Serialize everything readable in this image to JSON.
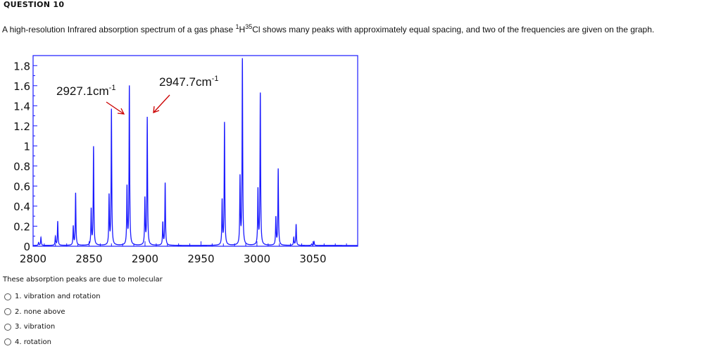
{
  "question": {
    "title": "QUESTION 10",
    "text_before": "A high-resolution Infrared absorption spectrum of a gas phase ",
    "iso_h": "1",
    "elem_h": "H",
    "iso_cl": "35",
    "text_after": "Cl shows many peaks with approximately equal spacing, and two of the frequencies are given on the graph.",
    "prompt": "These absorption peaks are due to molecular",
    "options": [
      {
        "label": "1. vibration and rotation"
      },
      {
        "label": "2. none above"
      },
      {
        "label": "3. vibration"
      },
      {
        "label": "4. rotation"
      }
    ]
  },
  "chart_data": {
    "type": "line",
    "line_color": "#1a1aff",
    "arrow_color": "#cc0000",
    "xlim": [
      2800,
      3090
    ],
    "ylim": [
      0,
      1.9
    ],
    "x_ticks": [
      "2800",
      "2850",
      "2900",
      "2950",
      "3000",
      "3050"
    ],
    "y_ticks": [
      "0",
      "0.2",
      "0.4",
      "0.6",
      "0.8",
      "1",
      "1.2",
      "1.4",
      "1.6",
      "1.8"
    ],
    "peaks": [
      {
        "x": 2807,
        "y": 0.08
      },
      {
        "x": 2822,
        "y": 0.24
      },
      {
        "x": 2838,
        "y": 0.52
      },
      {
        "x": 2854,
        "y": 0.98
      },
      {
        "x": 2870,
        "y": 1.35
      },
      {
        "x": 2886,
        "y": 1.58
      },
      {
        "x": 2902,
        "y": 1.27
      },
      {
        "x": 2918,
        "y": 0.62
      },
      {
        "x": 2971,
        "y": 1.22
      },
      {
        "x": 2987,
        "y": 1.85
      },
      {
        "x": 3003,
        "y": 1.51
      },
      {
        "x": 3019,
        "y": 0.76
      },
      {
        "x": 3035,
        "y": 0.21
      },
      {
        "x": 3051,
        "y": 0.04
      }
    ],
    "annotations": [
      {
        "text": "2927.1cm",
        "sup": "-1"
      },
      {
        "text": "2947.7cm",
        "sup": "-1"
      }
    ]
  }
}
